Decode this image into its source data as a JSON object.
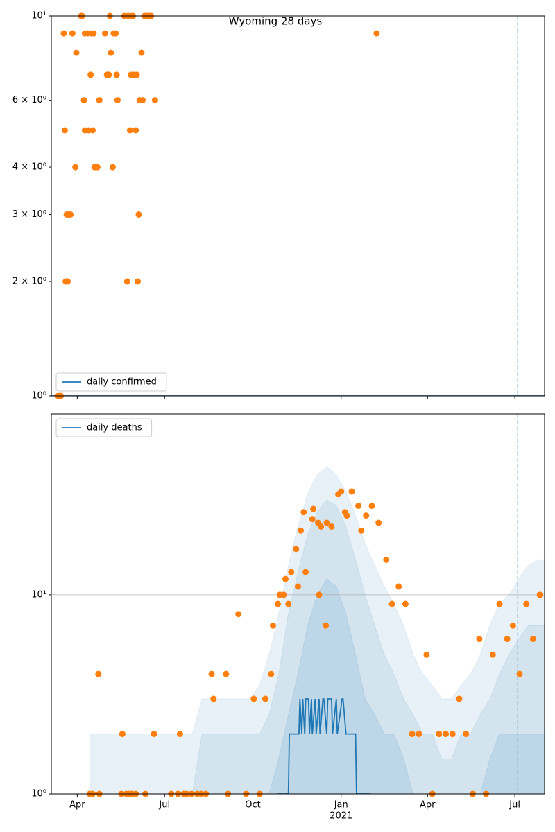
{
  "chart_data": [
    {
      "type": "line",
      "title": "Wyoming 28 days",
      "log_y": true,
      "legend_loc": "lower left",
      "xlim": [
        -27,
        487
      ],
      "ylim": [
        1,
        10
      ],
      "yticks": [
        {
          "value": 1,
          "label": "10⁰"
        },
        {
          "value": 2,
          "label": "2 × 10⁰"
        },
        {
          "value": 3,
          "label": "3 × 10⁰"
        },
        {
          "value": 4,
          "label": "4 × 10⁰"
        },
        {
          "value": 6,
          "label": "6 × 10⁰"
        },
        {
          "value": 10,
          "label": "10¹"
        }
      ],
      "grid": false,
      "vline": {
        "x": 459,
        "color": "#8fbbd9"
      },
      "series": [
        {
          "name": "daily confirmed",
          "color": "#1f77b4",
          "x": [
            -27,
            487
          ],
          "values": [
            1,
            1
          ]
        }
      ],
      "scatter": {
        "color": "#ff7f0e",
        "x": [
          -20,
          -17,
          -14,
          -13,
          -12,
          -10,
          -11,
          -9,
          -7,
          -5,
          -2,
          -1,
          4,
          5,
          7,
          8,
          8,
          11,
          12,
          14,
          15,
          16,
          17,
          18,
          21,
          23,
          29,
          31,
          33,
          34,
          35,
          37,
          38,
          40,
          41,
          42,
          49,
          52,
          53,
          55,
          56,
          57,
          58,
          59,
          61,
          62,
          63,
          64,
          65,
          67,
          68,
          70,
          73,
          75,
          77,
          81,
          312
        ],
        "values": [
          1,
          1,
          9,
          5,
          2,
          2,
          3,
          3,
          3,
          9,
          4,
          8,
          10,
          10,
          6,
          5,
          9,
          9,
          5,
          7,
          9,
          5,
          9,
          4,
          4,
          6,
          9,
          7,
          7,
          10,
          8,
          4,
          9,
          9,
          7,
          6,
          10,
          2,
          10,
          5,
          7,
          10,
          10,
          7,
          5,
          7,
          2,
          3,
          6,
          8,
          6,
          10,
          10,
          10,
          10,
          6,
          9
        ]
      }
    },
    {
      "type": "line",
      "log_y": true,
      "legend_loc": "upper left",
      "xlim": [
        -27,
        487
      ],
      "ylim": [
        1,
        81
      ],
      "xticks": [
        {
          "value": 0,
          "label": "Apr"
        },
        {
          "value": 91,
          "label": "Jul"
        },
        {
          "value": 183,
          "label": "Oct"
        },
        {
          "value": 275,
          "label": "Jan"
        },
        {
          "value": 365,
          "label": "Apr"
        },
        {
          "value": 456,
          "label": "Jul"
        }
      ],
      "year_label": {
        "value": 275,
        "label": "2021"
      },
      "yticks": [
        {
          "value": 1,
          "label": "10⁰"
        },
        {
          "value": 10,
          "label": "10¹"
        }
      ],
      "grid": true,
      "vline": {
        "x": 459,
        "color": "#8fbbd9"
      },
      "band_x": [
        14,
        30,
        60,
        90,
        120,
        130,
        160,
        180,
        190,
        200,
        210,
        220,
        230,
        240,
        250,
        260,
        270,
        280,
        290,
        300,
        310,
        320,
        330,
        340,
        350,
        360,
        370,
        380,
        390,
        400,
        410,
        420,
        430,
        440,
        450,
        460,
        470,
        480,
        487
      ],
      "bands": [
        {
          "color": "rgba(31,119,180,0.1)",
          "upper": [
            2,
            2,
            2,
            2,
            2,
            3,
            3,
            3,
            3.5,
            5,
            8,
            14,
            22,
            32,
            40,
            44,
            40,
            33,
            25,
            18,
            14,
            11,
            9,
            7,
            5,
            4,
            3.5,
            3,
            3,
            3.5,
            4,
            5,
            7,
            9,
            10,
            12,
            14,
            15,
            15
          ]
        },
        {
          "color": "rgba(31,119,180,0.1)",
          "upper": [
            1,
            1,
            1,
            1,
            1,
            2,
            2,
            2,
            2,
            2.5,
            4,
            8,
            13,
            20,
            26,
            30,
            28,
            22,
            15,
            10,
            7,
            5,
            4,
            3,
            2.5,
            2,
            2,
            1.5,
            1.5,
            2,
            2,
            2.5,
            3,
            4,
            5,
            6,
            7,
            7,
            7
          ]
        },
        {
          "color": "rgba(31,119,180,0.12)",
          "upper": [
            1,
            1,
            1,
            1,
            1,
            1,
            1,
            1,
            1,
            1,
            1.5,
            2.5,
            4,
            7,
            10,
            12,
            11,
            8,
            5,
            3,
            2.5,
            2,
            2,
            1.5,
            1,
            1,
            1,
            1,
            1,
            1,
            1,
            1,
            1.5,
            2,
            2,
            2,
            2,
            2,
            2
          ]
        }
      ],
      "series": [
        {
          "name": "daily deaths",
          "color": "#1f77b4",
          "x": [
            209,
            220,
            221,
            231,
            232,
            234,
            235,
            237,
            238,
            241,
            242,
            244,
            245,
            248,
            249,
            252,
            253,
            256,
            257,
            260,
            261,
            265,
            266,
            270,
            271,
            276,
            277,
            280,
            281,
            290,
            291,
            305
          ],
          "values": [
            1,
            1,
            2,
            2,
            3,
            2,
            3,
            2,
            3,
            3,
            2,
            3,
            2,
            3,
            2,
            3,
            2,
            3,
            3,
            2,
            3,
            3,
            2,
            3,
            2,
            3,
            3,
            2,
            2,
            2,
            1,
            1
          ]
        }
      ],
      "scatter": {
        "color": "#ff7f0e",
        "x": [
          13,
          16,
          22,
          23,
          47,
          46,
          51,
          54,
          57,
          61,
          71,
          80,
          98,
          105,
          107,
          111,
          114,
          119,
          125,
          129,
          134,
          140,
          142,
          155,
          157,
          168,
          176,
          184,
          190,
          196,
          202,
          204,
          209,
          211,
          215,
          217,
          220,
          223,
          228,
          230,
          233,
          236,
          238,
          245,
          246,
          251,
          252,
          254,
          259,
          260,
          265,
          272,
          275,
          279,
          281,
          286,
          293,
          296,
          301,
          307,
          314,
          322,
          328,
          335,
          342,
          349,
          356,
          364,
          370,
          377,
          384,
          391,
          398,
          405,
          412,
          419,
          426,
          433,
          440,
          448,
          454,
          461,
          468,
          475,
          482
        ],
        "values": [
          1,
          1,
          4,
          1,
          2,
          1,
          1,
          1,
          1,
          1,
          1,
          2,
          1,
          1,
          2,
          1,
          1,
          1,
          1,
          1,
          1,
          4,
          3,
          4,
          1,
          8,
          1,
          3,
          1,
          3,
          4,
          7,
          9,
          10,
          10,
          12,
          9,
          13,
          17,
          11,
          21,
          26,
          13,
          24,
          27,
          23,
          10,
          22,
          7,
          23,
          22,
          32,
          33,
          26,
          25,
          33,
          28,
          21,
          25,
          28,
          23,
          15,
          9,
          11,
          9,
          2,
          2,
          5,
          1,
          2,
          2,
          2,
          3,
          2,
          1,
          6,
          1,
          5,
          9,
          6,
          7,
          4,
          9,
          6,
          10
        ]
      }
    }
  ]
}
